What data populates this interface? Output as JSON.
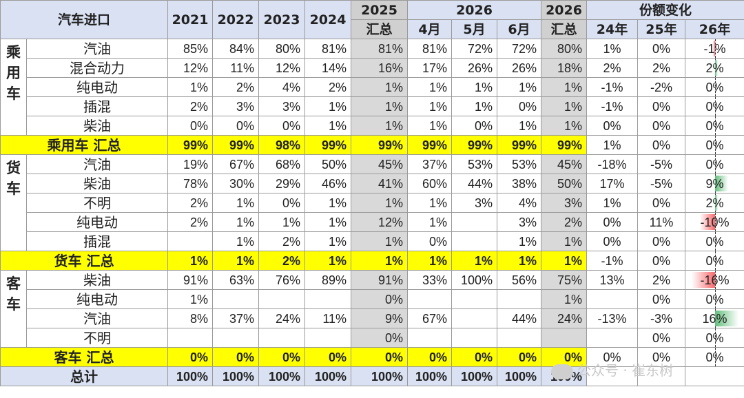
{
  "header": {
    "title": "汽车进口",
    "years": [
      "2021",
      "2022",
      "2023",
      "2024"
    ],
    "y2025": "2025",
    "summary_label": "汇总",
    "y2026": "2026",
    "months": [
      "4月",
      "5月",
      "6月"
    ],
    "share_change": "份额变化",
    "change_years": [
      "24年",
      "25年",
      "26年"
    ]
  },
  "groups": [
    {
      "name": "乘用车",
      "rows": [
        {
          "label": "汽油",
          "v": [
            "85%",
            "84%",
            "80%",
            "81%",
            "81%",
            "81%",
            "72%",
            "72%",
            "80%"
          ],
          "c": [
            "1%",
            "0%",
            "-1%"
          ],
          "d26": -1
        },
        {
          "label": "混合动力",
          "v": [
            "12%",
            "11%",
            "12%",
            "14%",
            "16%",
            "17%",
            "26%",
            "26%",
            "18%"
          ],
          "c": [
            "2%",
            "2%",
            "2%"
          ],
          "d26": 2
        },
        {
          "label": "纯电动",
          "v": [
            "1%",
            "2%",
            "4%",
            "2%",
            "1%",
            "1%",
            "1%",
            "1%",
            "1%"
          ],
          "c": [
            "-1%",
            "-2%",
            "0%"
          ],
          "d26": 0
        },
        {
          "label": "插混",
          "v": [
            "2%",
            "3%",
            "3%",
            "1%",
            "1%",
            "1%",
            "1%",
            "0%",
            "1%"
          ],
          "c": [
            "-1%",
            "0%",
            "0%"
          ],
          "d26": 0
        },
        {
          "label": "柴油",
          "v": [
            "0%",
            "0%",
            "0%",
            "1%",
            "1%",
            "1%",
            "0%",
            "1%",
            "1%"
          ],
          "c": [
            "0%",
            "0%",
            "0%"
          ],
          "d26": 0
        }
      ],
      "summary": {
        "label": "乘用车 汇总",
        "v": [
          "99%",
          "99%",
          "98%",
          "99%",
          "99%",
          "99%",
          "99%",
          "99%",
          "99%"
        ],
        "c": [
          "1%",
          "0%",
          "0%"
        ],
        "d26": 0
      }
    },
    {
      "name": "货车",
      "rows": [
        {
          "label": "汽油",
          "v": [
            "19%",
            "67%",
            "68%",
            "50%",
            "45%",
            "37%",
            "53%",
            "53%",
            "45%"
          ],
          "c": [
            "-18%",
            "-5%",
            "0%"
          ],
          "d26": 0
        },
        {
          "label": "柴油",
          "v": [
            "78%",
            "30%",
            "29%",
            "46%",
            "41%",
            "60%",
            "44%",
            "38%",
            "50%"
          ],
          "c": [
            "17%",
            "-5%",
            "9%"
          ],
          "d26": 9
        },
        {
          "label": "不明",
          "v": [
            "2%",
            "1%",
            "0%",
            "1%",
            "1%",
            "1%",
            "3%",
            "4%",
            "3%"
          ],
          "c": [
            "1%",
            "0%",
            "2%"
          ],
          "d26": 2
        },
        {
          "label": "纯电动",
          "v": [
            "2%",
            "1%",
            "1%",
            "1%",
            "12%",
            "1%",
            "",
            "3%",
            "2%"
          ],
          "c": [
            "0%",
            "11%",
            "-10%"
          ],
          "d26": -10
        },
        {
          "label": "插混",
          "v": [
            "",
            "1%",
            "2%",
            "1%",
            "1%",
            "0%",
            "",
            "1%",
            "1%"
          ],
          "c": [
            "0%",
            "0%",
            "0%"
          ],
          "d26": 0
        }
      ],
      "summary": {
        "label": "货车 汇总",
        "v": [
          "1%",
          "1%",
          "2%",
          "1%",
          "1%",
          "1%",
          "1%",
          "1%",
          "1%"
        ],
        "c": [
          "-1%",
          "0%",
          "0%"
        ],
        "d26": 0
      }
    },
    {
      "name": "客车",
      "rows": [
        {
          "label": "柴油",
          "v": [
            "91%",
            "63%",
            "76%",
            "89%",
            "91%",
            "33%",
            "100%",
            "56%",
            "75%"
          ],
          "c": [
            "13%",
            "2%",
            "-16%"
          ],
          "d26": -16
        },
        {
          "label": "纯电动",
          "v": [
            "1%",
            "",
            "",
            "",
            "0%",
            "",
            "",
            "",
            "1%"
          ],
          "c": [
            "",
            "0%",
            "0%"
          ],
          "d26": 0
        },
        {
          "label": "汽油",
          "v": [
            "8%",
            "37%",
            "24%",
            "11%",
            "9%",
            "67%",
            "",
            "44%",
            "24%"
          ],
          "c": [
            "-13%",
            "-3%",
            "16%"
          ],
          "d26": 16
        },
        {
          "label": "不明",
          "v": [
            "",
            "",
            "",
            "",
            "0%",
            "",
            "",
            "",
            ""
          ],
          "c": [
            "",
            "0%",
            "0%"
          ],
          "d26": 0
        }
      ],
      "summary": {
        "label": "客车 汇总",
        "v": [
          "0%",
          "0%",
          "0%",
          "0%",
          "0%",
          "0%",
          "0%",
          "0%",
          "0%"
        ],
        "c": [
          "0%",
          "0%",
          "0%"
        ],
        "d26": 0
      }
    }
  ],
  "total": {
    "label": "总计",
    "v": [
      "100%",
      "100%",
      "100%",
      "100%",
      "100%",
      "100%",
      "100%",
      "100%",
      "100%"
    ]
  },
  "watermark": "公众号 · 崔东树",
  "colors": {
    "header": "#d9e1f2",
    "summary": "#ffff00",
    "gray": "#d9d9d9",
    "pos_bar": "#63be7b",
    "neg_bar": "#f8696b"
  }
}
